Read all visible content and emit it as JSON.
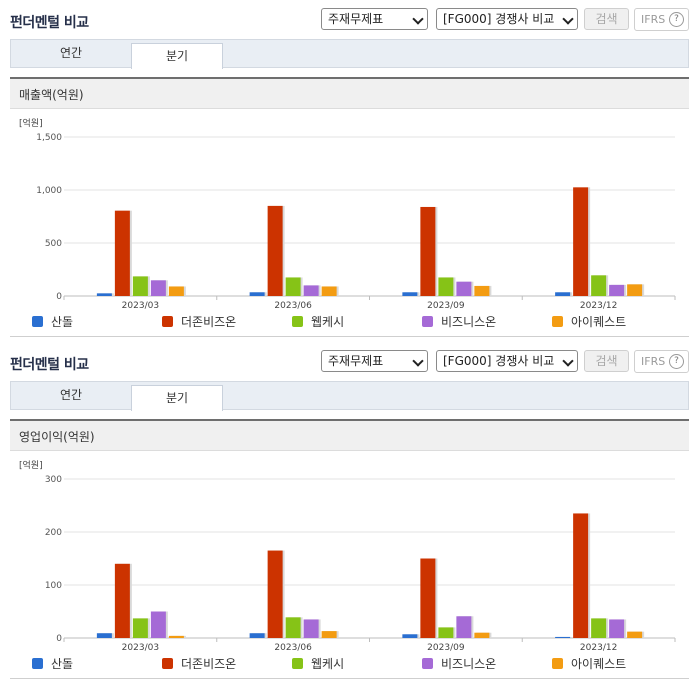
{
  "panels": [
    {
      "title": "펀더멘털 비교",
      "select_statement": "주재무제표",
      "select_compare": "[FG000] 경쟁사 비교",
      "search_label": "검색",
      "ifrs_label": "IFRS",
      "help_glyph": "?",
      "tabs": [
        "연간",
        "분기"
      ],
      "active_tab": "분기",
      "metric_label": "매출액(억원)"
    },
    {
      "title": "펀더멘털 비교",
      "select_statement": "주재무제표",
      "select_compare": "[FG000] 경쟁사 비교",
      "search_label": "검색",
      "ifrs_label": "IFRS",
      "help_glyph": "?",
      "tabs": [
        "연간",
        "분기"
      ],
      "active_tab": "분기",
      "metric_label": "영업이익(억원)"
    }
  ],
  "colors": {
    "산돌": "#2a6fd1",
    "더존비즈온": "#cc3300",
    "웹케시": "#86c317",
    "비즈니스온": "#a56ad6",
    "아이퀘스트": "#f39c12"
  },
  "chart_data": [
    {
      "type": "bar",
      "unit_label": "[억원]",
      "categories": [
        "2023/03",
        "2023/06",
        "2023/09",
        "2023/12"
      ],
      "ylim": [
        0,
        1500
      ],
      "yticks": [
        0,
        500,
        1000,
        1500
      ],
      "ytick_labels": [
        "0",
        "500",
        "1,000",
        "1,500"
      ],
      "grid": true,
      "legend_position": "bottom",
      "series": [
        {
          "name": "산돌",
          "values": [
            25,
            35,
            35,
            35
          ]
        },
        {
          "name": "더존비즈온",
          "values": [
            805,
            850,
            840,
            1025
          ]
        },
        {
          "name": "웹케시",
          "values": [
            185,
            175,
            175,
            195
          ]
        },
        {
          "name": "비즈니스온",
          "values": [
            148,
            100,
            135,
            105
          ]
        },
        {
          "name": "아이퀘스트",
          "values": [
            90,
            90,
            95,
            110
          ]
        }
      ]
    },
    {
      "type": "bar",
      "unit_label": "[억원]",
      "categories": [
        "2023/03",
        "2023/06",
        "2023/09",
        "2023/12"
      ],
      "ylim": [
        0,
        300
      ],
      "yticks": [
        0,
        100,
        200,
        300
      ],
      "ytick_labels": [
        "0",
        "100",
        "200",
        "300"
      ],
      "grid": true,
      "legend_position": "bottom",
      "series": [
        {
          "name": "산돌",
          "values": [
            9,
            9,
            7,
            2
          ]
        },
        {
          "name": "더존비즈온",
          "values": [
            140,
            165,
            150,
            235
          ]
        },
        {
          "name": "웹케시",
          "values": [
            37,
            39,
            20,
            37
          ]
        },
        {
          "name": "비즈니스온",
          "values": [
            50,
            35,
            41,
            35
          ]
        },
        {
          "name": "아이퀘스트",
          "values": [
            4,
            13,
            10,
            12
          ]
        }
      ]
    }
  ]
}
